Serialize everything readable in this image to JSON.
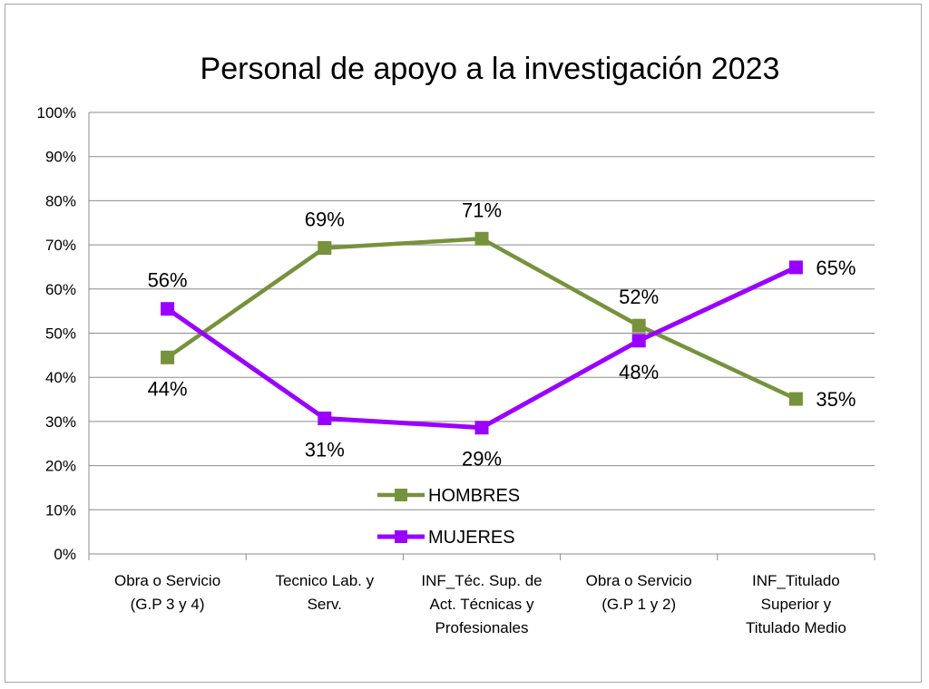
{
  "chart_data": {
    "type": "line",
    "title": "Personal de apoyo a la investigación 2023",
    "xlabel": "",
    "ylabel": "",
    "ylim": [
      0,
      100
    ],
    "y_ticks": [
      "0%",
      "10%",
      "20%",
      "30%",
      "40%",
      "50%",
      "60%",
      "70%",
      "80%",
      "90%",
      "100%"
    ],
    "categories": [
      [
        "Obra o Servicio",
        "(G.P 3 y 4)"
      ],
      [
        "Tecnico Lab. y",
        "Serv."
      ],
      [
        "INF_Téc. Sup. de",
        "Act. Técnicas y",
        "Profesionales"
      ],
      [
        "Obra o Servicio",
        "(G.P 1 y 2)"
      ],
      [
        "INF_Titulado",
        "Superior y",
        "Titulado Medio"
      ]
    ],
    "grid": true,
    "legend_position": "inside-bottom-center",
    "series": [
      {
        "name": "HOMBRES",
        "color": "#76923c",
        "values": [
          44.5,
          69.3,
          71.4,
          51.7,
          35.1
        ],
        "labels": [
          "44%",
          "69%",
          "71%",
          "52%",
          "35%"
        ],
        "label_pos": [
          "below",
          "above",
          "above",
          "above",
          "right"
        ]
      },
      {
        "name": "MUJERES",
        "color": "#9900ff",
        "values": [
          55.5,
          30.7,
          28.6,
          48.3,
          64.9
        ],
        "labels": [
          "56%",
          "31%",
          "29%",
          "48%",
          "65%"
        ],
        "label_pos": [
          "above",
          "below",
          "below",
          "below",
          "right"
        ]
      }
    ]
  }
}
